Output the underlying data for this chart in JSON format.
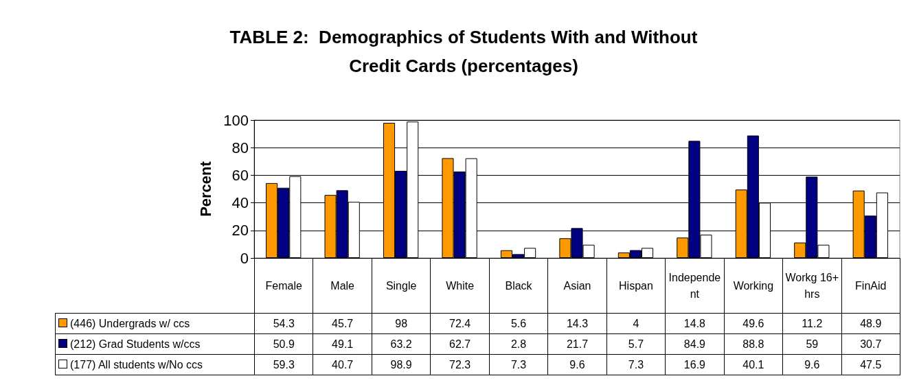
{
  "chart_data": {
    "type": "bar",
    "title": "TABLE 2:  Demographics of Students With and Without\nCredit Cards (percentages)",
    "ylabel": "Percent",
    "categories": [
      "Female",
      "Male",
      "Single",
      "White",
      "Black",
      "Asian",
      "Hispan",
      "Independent",
      "Working",
      "Workg 16+ hrs",
      "FinAid"
    ],
    "series": [
      {
        "name": "(446) Undergrads w/ ccs",
        "color": "#ff9900",
        "values": [
          54.3,
          45.7,
          98,
          72.4,
          5.6,
          14.3,
          4,
          14.8,
          49.6,
          11.2,
          48.9
        ]
      },
      {
        "name": "(212) Grad Students w/ccs",
        "color": "#000080",
        "values": [
          50.9,
          49.1,
          63.2,
          62.7,
          2.8,
          21.7,
          5.7,
          84.9,
          88.8,
          59,
          30.7
        ]
      },
      {
        "name": "(177) All students w/No ccs",
        "color": "#ffffff",
        "values": [
          59.3,
          40.7,
          98.9,
          72.3,
          7.3,
          9.6,
          7.3,
          16.9,
          40.1,
          9.6,
          47.5
        ]
      }
    ],
    "ylim": [
      0,
      100
    ],
    "yticks": [
      0,
      20,
      40,
      60,
      80,
      100
    ],
    "grid": "y",
    "legend": "bottom",
    "data_labels": true
  }
}
